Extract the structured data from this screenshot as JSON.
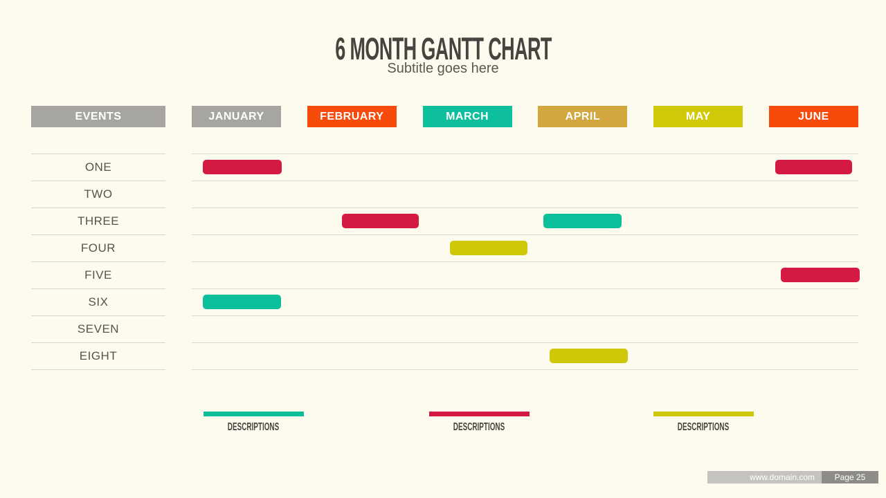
{
  "slide": {
    "title": "6 MONTH GANTT CHART",
    "subtitle": "Subtitle goes here"
  },
  "table": {
    "events_header": "EVENTS",
    "months": [
      {
        "label": "JANUARY",
        "color": "#a7a5a2"
      },
      {
        "label": "FEBRUARY",
        "color": "#f64b0b"
      },
      {
        "label": "MARCH",
        "color": "#0dbf9c"
      },
      {
        "label": "APRIL",
        "color": "#d1a73e"
      },
      {
        "label": "MAY",
        "color": "#d1ca0a"
      },
      {
        "label": "JUNE",
        "color": "#f64b0b"
      }
    ]
  },
  "chart_data": {
    "type": "gantt",
    "title": "6 MONTH GANTT CHART",
    "timeline": [
      "JANUARY",
      "FEBRUARY",
      "MARCH",
      "APRIL",
      "MAY",
      "JUNE"
    ],
    "colors": {
      "crimson": "#d41942",
      "teal": "#0cbf9b",
      "yellow": "#cfc708"
    },
    "rows": [
      {
        "label": "ONE",
        "bars": [
          {
            "month": "JANUARY",
            "start_pct": 1.7,
            "width_pct": 11.8,
            "color": "#d41942"
          },
          {
            "month": "JUNE",
            "start_pct": 87.5,
            "width_pct": 11.6,
            "color": "#d41942"
          }
        ]
      },
      {
        "label": "TWO",
        "bars": []
      },
      {
        "label": "THREE",
        "bars": [
          {
            "month": "FEBRUARY",
            "start_pct": 22.5,
            "width_pct": 11.6,
            "color": "#d41942"
          },
          {
            "month": "APRIL",
            "start_pct": 52.8,
            "width_pct": 11.7,
            "color": "#0cbf9b"
          }
        ]
      },
      {
        "label": "FOUR",
        "bars": [
          {
            "month": "MARCH",
            "start_pct": 38.7,
            "width_pct": 11.7,
            "color": "#cfc708"
          }
        ]
      },
      {
        "label": "FIVE",
        "bars": [
          {
            "month": "JUNE",
            "start_pct": 88.4,
            "width_pct": 11.8,
            "color": "#d41942"
          }
        ]
      },
      {
        "label": "SIX",
        "bars": [
          {
            "month": "JANUARY",
            "start_pct": 1.7,
            "width_pct": 11.7,
            "color": "#0cbf9b"
          }
        ]
      },
      {
        "label": "SEVEN",
        "bars": []
      },
      {
        "label": "EIGHT",
        "bars": [
          {
            "month": "APRIL",
            "start_pct": 53.7,
            "width_pct": 11.7,
            "color": "#cfc708"
          }
        ]
      }
    ]
  },
  "legend": [
    {
      "label": "DESCRIPTIONS",
      "color": "#0cbf9b"
    },
    {
      "label": "DESCRIPTIONS",
      "color": "#d41942"
    },
    {
      "label": "DESCRIPTIONS",
      "color": "#cfc708"
    }
  ],
  "footer": {
    "website": "www.domain.com",
    "page": "Page 25"
  }
}
